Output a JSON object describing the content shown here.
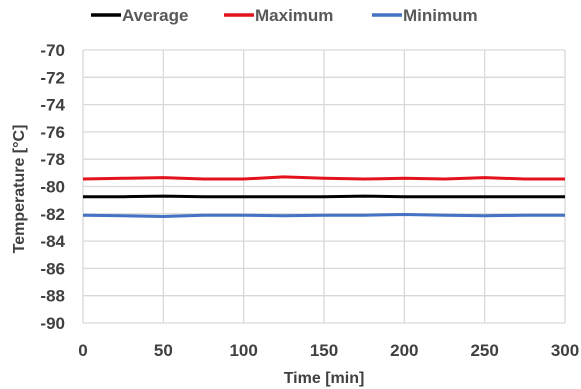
{
  "chart_data": {
    "type": "line",
    "title": "",
    "xlabel": "Time [min]",
    "ylabel": "Temperature [°C]",
    "xlim": [
      0,
      300
    ],
    "ylim": [
      -90,
      -70
    ],
    "x_ticks": [
      0,
      50,
      100,
      150,
      200,
      250,
      300
    ],
    "y_ticks": [
      -70,
      -72,
      -74,
      -76,
      -78,
      -80,
      -82,
      -84,
      -86,
      -88,
      -90
    ],
    "x_tick_labels": [
      "0",
      "50",
      "100",
      "150",
      "200",
      "250",
      "300"
    ],
    "y_tick_labels": [
      "-70",
      "-72",
      "-74",
      "-76",
      "-78",
      "-80",
      "-82",
      "-84",
      "-86",
      "-88",
      "-90"
    ],
    "grid": true,
    "legend": "top",
    "series": [
      {
        "name": "Average",
        "color": "#000000",
        "x": [
          0,
          25,
          50,
          75,
          100,
          125,
          150,
          175,
          200,
          225,
          250,
          275,
          300
        ],
        "values": [
          -80.75,
          -80.75,
          -80.7,
          -80.75,
          -80.75,
          -80.75,
          -80.75,
          -80.7,
          -80.75,
          -80.75,
          -80.75,
          -80.75,
          -80.75
        ]
      },
      {
        "name": "Maximum",
        "color": "#e3121b",
        "x": [
          0,
          25,
          50,
          75,
          100,
          125,
          150,
          175,
          200,
          225,
          250,
          275,
          300
        ],
        "values": [
          -79.45,
          -79.4,
          -79.35,
          -79.45,
          -79.45,
          -79.3,
          -79.4,
          -79.45,
          -79.4,
          -79.45,
          -79.35,
          -79.45,
          -79.45
        ]
      },
      {
        "name": "Minimum",
        "color": "#4472c4",
        "x": [
          0,
          25,
          50,
          75,
          100,
          125,
          150,
          175,
          200,
          225,
          250,
          275,
          300
        ],
        "values": [
          -82.1,
          -82.15,
          -82.2,
          -82.1,
          -82.1,
          -82.15,
          -82.1,
          -82.1,
          -82.05,
          -82.1,
          -82.15,
          -82.1,
          -82.1
        ]
      }
    ]
  }
}
